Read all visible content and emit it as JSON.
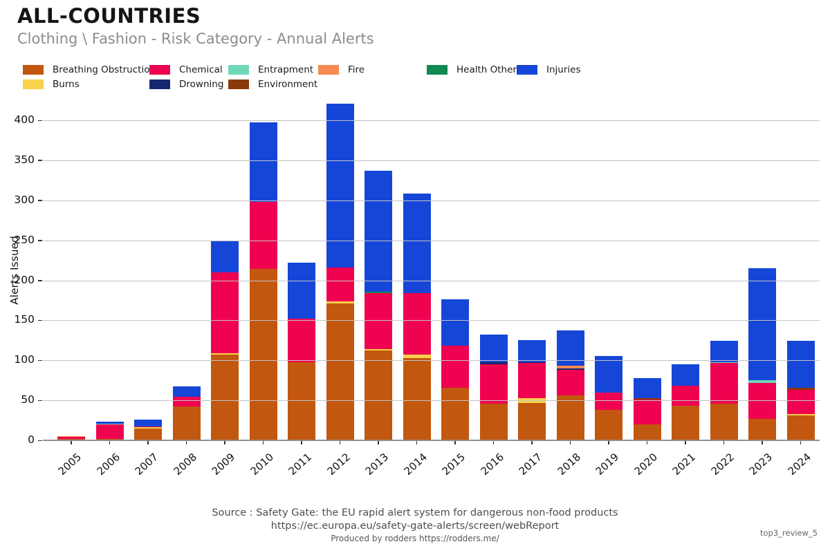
{
  "header": {
    "title": "ALL-COUNTRIES",
    "subtitle": "Clothing \\ Fashion - Risk Category - Annual Alerts"
  },
  "legend": {
    "items": [
      {
        "label": "Breathing Obstruction",
        "color": "#c2570f",
        "row": 0
      },
      {
        "label": "Chemical",
        "color": "#ef0350",
        "row": 0
      },
      {
        "label": "Entrapment",
        "color": "#6fd8b8",
        "row": 0
      },
      {
        "label": "Fire",
        "color": "#f58b51",
        "row": 0
      },
      {
        "label": "Health Other",
        "color": "#0e8a52",
        "row": 0
      },
      {
        "label": "Injuries",
        "color": "#1546d8",
        "row": 0
      },
      {
        "label": "Burns",
        "color": "#f8d24a",
        "row": 1
      },
      {
        "label": "Drowning",
        "color": "#14276f",
        "row": 1
      },
      {
        "label": "Environment",
        "color": "#8b3a0b",
        "row": 1
      }
    ]
  },
  "chart_data": {
    "type": "bar",
    "stacked": true,
    "title": "ALL-COUNTRIES",
    "subtitle": "Clothing \\ Fashion - Risk Category - Annual Alerts",
    "xlabel": "",
    "ylabel": "Alerts Issued",
    "ylim": [
      0,
      430
    ],
    "yticks": [
      0,
      50,
      100,
      150,
      200,
      250,
      300,
      350,
      400
    ],
    "grid": "horizontal",
    "legend_position": "top",
    "categories": [
      "2005",
      "2006",
      "2007",
      "2008",
      "2009",
      "2010",
      "2011",
      "2012",
      "2013",
      "2014",
      "2015",
      "2016",
      "2017",
      "2018",
      "2019",
      "2020",
      "2021",
      "2022",
      "2023",
      "2024"
    ],
    "series": [
      {
        "name": "Breathing Obstruction",
        "color": "#c2570f",
        "values": [
          2,
          2,
          15,
          42,
          107,
          214,
          98,
          171,
          112,
          103,
          66,
          46,
          47,
          56,
          38,
          20,
          43,
          46,
          27,
          31
        ]
      },
      {
        "name": "Burns",
        "color": "#f8d24a",
        "values": [
          0,
          0,
          1,
          0,
          2,
          0,
          0,
          3,
          2,
          4,
          0,
          0,
          6,
          0,
          0,
          0,
          0,
          0,
          0,
          2
        ]
      },
      {
        "name": "Chemical",
        "color": "#ef0350",
        "values": [
          2,
          18,
          1,
          12,
          101,
          84,
          54,
          42,
          70,
          77,
          52,
          49,
          44,
          32,
          22,
          31,
          25,
          51,
          45,
          30
        ]
      },
      {
        "name": "Drowning",
        "color": "#14276f",
        "values": [
          0,
          0,
          0,
          0,
          0,
          0,
          0,
          0,
          0,
          0,
          0,
          3,
          1,
          2,
          0,
          0,
          0,
          0,
          0,
          0
        ]
      },
      {
        "name": "Entrapment",
        "color": "#6fd8b8",
        "values": [
          0,
          1,
          0,
          0,
          0,
          0,
          0,
          0,
          0,
          0,
          0,
          0,
          0,
          0,
          0,
          0,
          0,
          1,
          3,
          0
        ]
      },
      {
        "name": "Environment",
        "color": "#8b3a0b",
        "values": [
          0,
          0,
          0,
          0,
          0,
          0,
          0,
          0,
          0,
          0,
          0,
          0,
          0,
          0,
          0,
          2,
          0,
          0,
          0,
          3
        ]
      },
      {
        "name": "Fire",
        "color": "#f58b51",
        "values": [
          1,
          0,
          0,
          0,
          0,
          0,
          0,
          0,
          0,
          0,
          0,
          0,
          0,
          3,
          0,
          0,
          0,
          0,
          0,
          0
        ]
      },
      {
        "name": "Health Other",
        "color": "#0e8a52",
        "values": [
          0,
          0,
          0,
          0,
          0,
          0,
          0,
          0,
          2,
          0,
          0,
          0,
          0,
          0,
          0,
          0,
          0,
          0,
          0,
          0
        ]
      },
      {
        "name": "Injuries",
        "color": "#1546d8",
        "values": [
          0,
          2,
          9,
          13,
          40,
          99,
          70,
          205,
          151,
          124,
          58,
          34,
          27,
          44,
          45,
          25,
          27,
          26,
          140,
          58
        ]
      }
    ],
    "totals": [
      5,
      23,
      26,
      67,
      250,
      397,
      222,
      421,
      337,
      308,
      176,
      132,
      125,
      137,
      105,
      78,
      95,
      124,
      215,
      124
    ]
  },
  "footer": {
    "source_line1": "Source : Safety Gate: the EU rapid alert system for dangerous non-food products",
    "source_line2": "https://ec.europa.eu/safety-gate-alerts/screen/webReport",
    "produced_by": "Produced by rodders https://rodders.me/",
    "watermark": "top3_review_5"
  }
}
